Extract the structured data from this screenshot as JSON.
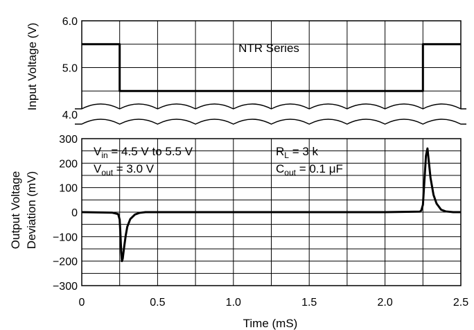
{
  "chart_data": {
    "type": "line",
    "xlabel": "Time (mS)",
    "xlim": [
      0,
      2.5
    ],
    "x_ticks": [
      "0",
      "0.5",
      "1.0",
      "1.5",
      "2.0",
      "2.5"
    ],
    "grid": true,
    "top_panel": {
      "ylabel": "Input Voltage (V)",
      "ylim": [
        4.0,
        6.0
      ],
      "y_ticks": [
        "6.0",
        "5.0",
        "4.0"
      ],
      "title_text": "NTR Series",
      "series": [
        {
          "x": [
            0,
            0.25,
            0.25,
            2.25,
            2.25,
            2.5
          ],
          "y": [
            5.5,
            5.5,
            4.5,
            4.5,
            5.5,
            5.5
          ]
        }
      ]
    },
    "bottom_panel": {
      "ylabel_line1": "Output Voltage",
      "ylabel_line2": "Deviation (mV)",
      "ylim": [
        -300,
        300
      ],
      "y_ticks": [
        "300",
        "200",
        "100",
        "0",
        "−100",
        "−200",
        "−300"
      ],
      "annotations": {
        "vin_main": "V",
        "vin_sub": "in",
        "vin_rest": " = 4.5 V to 5.5 V",
        "vout_main": "V",
        "vout_sub": "out",
        "vout_rest": " = 3.0 V",
        "rl_main": "R",
        "rl_sub": "L",
        "rl_rest": " = 3 k",
        "cout_main": "C",
        "cout_sub": "out",
        "cout_rest": " = 0.1 μF"
      },
      "series": [
        {
          "x": [
            0,
            0.2,
            0.24,
            0.25,
            0.255,
            0.26,
            0.265,
            0.27,
            0.28,
            0.29,
            0.3,
            0.32,
            0.35,
            0.38,
            0.42,
            0.5,
            1.0,
            2.0,
            2.23,
            2.24,
            2.25,
            2.26,
            2.27,
            2.28,
            2.29,
            2.3,
            2.32,
            2.34,
            2.37,
            2.4,
            2.45,
            2.5
          ],
          "y": [
            0,
            -2,
            -8,
            -30,
            -90,
            -160,
            -200,
            -190,
            -140,
            -95,
            -60,
            -28,
            -10,
            -3,
            0,
            0,
            0,
            0,
            2,
            8,
            30,
            130,
            230,
            260,
            200,
            140,
            70,
            35,
            10,
            3,
            0,
            0
          ]
        }
      ]
    }
  }
}
